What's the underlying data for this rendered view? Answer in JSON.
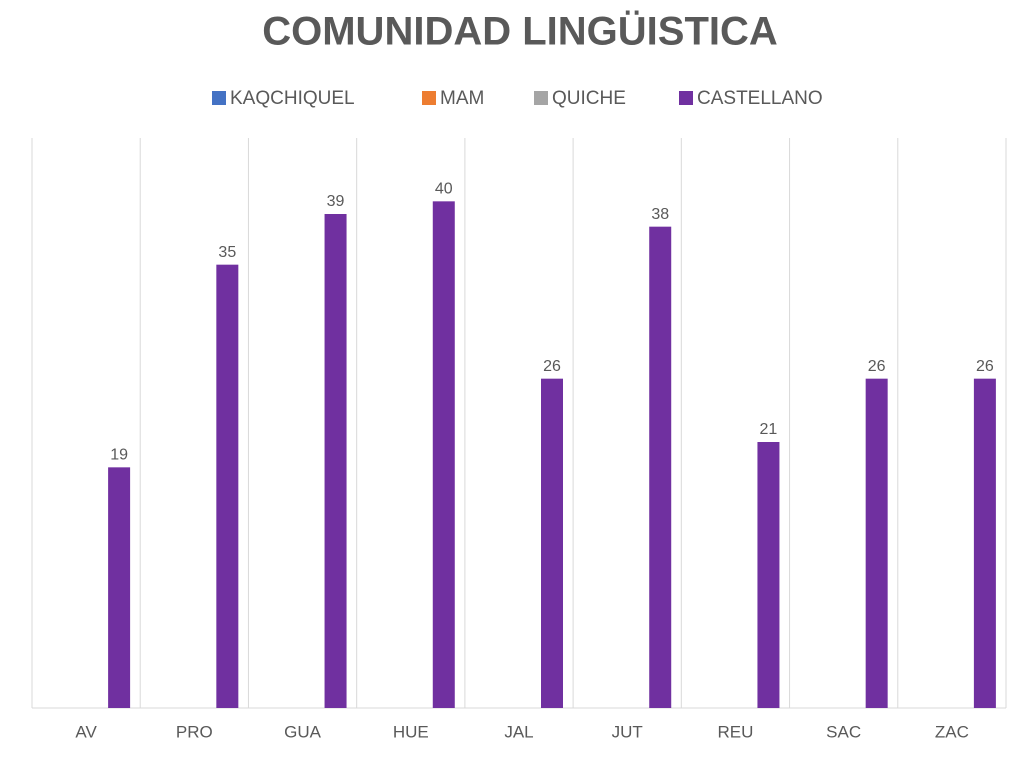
{
  "chart_data": {
    "type": "bar",
    "title": "COMUNIDAD LINGÜISTICA",
    "categories": [
      "AV",
      "PRO",
      "GUA",
      "HUE",
      "JAL",
      "JUT",
      "REU",
      "SAC",
      "ZAC"
    ],
    "series": [
      {
        "name": "KAQCHIQUEL",
        "color": "#4472c4",
        "values": [
          null,
          null,
          null,
          null,
          null,
          null,
          null,
          null,
          null
        ]
      },
      {
        "name": "MAM",
        "color": "#ed7d31",
        "values": [
          null,
          null,
          null,
          null,
          null,
          null,
          null,
          null,
          null
        ]
      },
      {
        "name": "QUICHE",
        "color": "#a5a5a5",
        "values": [
          null,
          null,
          null,
          null,
          null,
          null,
          null,
          null,
          null
        ]
      },
      {
        "name": "CASTELLANO",
        "color": "#7030a0",
        "values": [
          19,
          35,
          39,
          40,
          26,
          38,
          21,
          26,
          26
        ]
      }
    ],
    "ylim": [
      0,
      45
    ],
    "legend": "top"
  }
}
